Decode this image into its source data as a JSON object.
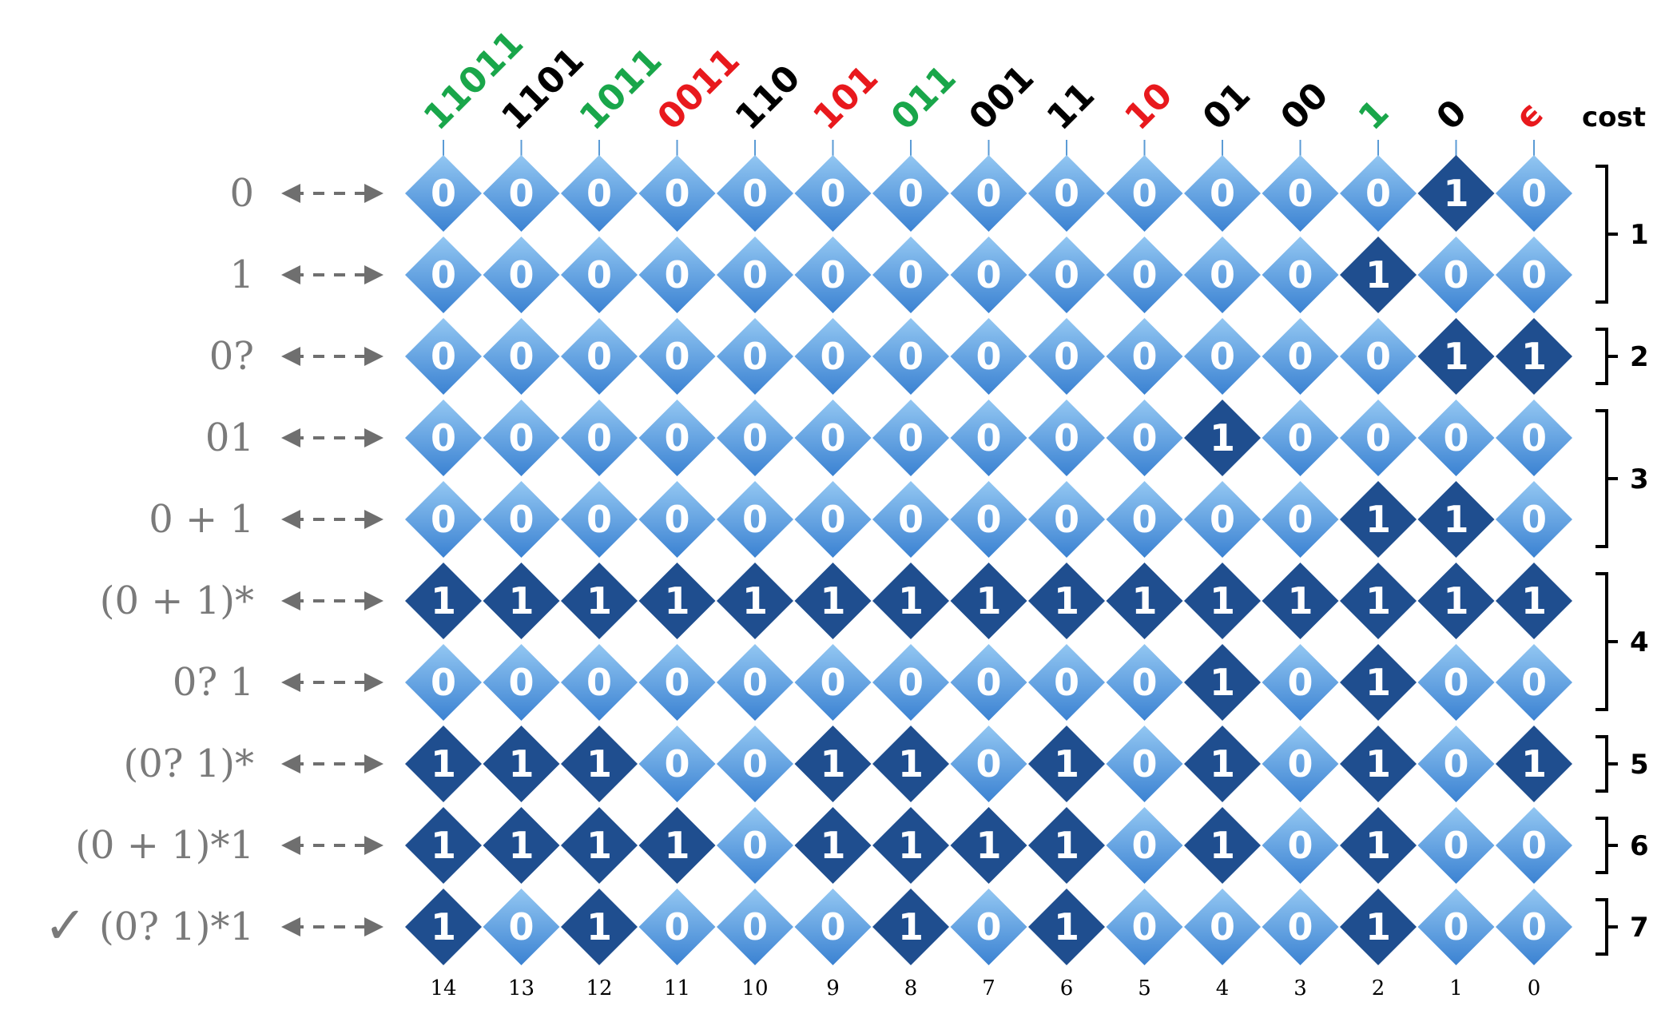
{
  "columns": [
    {
      "label": "11011",
      "color": "#19a64a",
      "index": "14"
    },
    {
      "label": "1101",
      "color": "#000000",
      "index": "13"
    },
    {
      "label": "1011",
      "color": "#19a64a",
      "index": "12"
    },
    {
      "label": "0011",
      "color": "#e8191d",
      "index": "11"
    },
    {
      "label": "110",
      "color": "#000000",
      "index": "10"
    },
    {
      "label": "101",
      "color": "#e8191d",
      "index": "9"
    },
    {
      "label": "011",
      "color": "#19a64a",
      "index": "8"
    },
    {
      "label": "001",
      "color": "#000000",
      "index": "7"
    },
    {
      "label": "11",
      "color": "#000000",
      "index": "6"
    },
    {
      "label": "10",
      "color": "#e8191d",
      "index": "5"
    },
    {
      "label": "01",
      "color": "#000000",
      "index": "4"
    },
    {
      "label": "00",
      "color": "#000000",
      "index": "3"
    },
    {
      "label": "1",
      "color": "#19a64a",
      "index": "2"
    },
    {
      "label": "0",
      "color": "#000000",
      "index": "1"
    },
    {
      "label": "ϵ",
      "color": "#e8191d",
      "index": "0"
    }
  ],
  "cost_title": "cost",
  "rows": [
    {
      "regex": "0",
      "checked": false,
      "values": [
        0,
        0,
        0,
        0,
        0,
        0,
        0,
        0,
        0,
        0,
        0,
        0,
        0,
        1,
        0
      ]
    },
    {
      "regex": "1",
      "checked": false,
      "values": [
        0,
        0,
        0,
        0,
        0,
        0,
        0,
        0,
        0,
        0,
        0,
        0,
        1,
        0,
        0
      ]
    },
    {
      "regex": "0?",
      "checked": false,
      "values": [
        0,
        0,
        0,
        0,
        0,
        0,
        0,
        0,
        0,
        0,
        0,
        0,
        0,
        1,
        1
      ]
    },
    {
      "regex": "01",
      "checked": false,
      "values": [
        0,
        0,
        0,
        0,
        0,
        0,
        0,
        0,
        0,
        0,
        1,
        0,
        0,
        0,
        0
      ]
    },
    {
      "regex": "0 + 1",
      "checked": false,
      "values": [
        0,
        0,
        0,
        0,
        0,
        0,
        0,
        0,
        0,
        0,
        0,
        0,
        1,
        1,
        0
      ]
    },
    {
      "regex": "(0 + 1)*",
      "checked": false,
      "values": [
        1,
        1,
        1,
        1,
        1,
        1,
        1,
        1,
        1,
        1,
        1,
        1,
        1,
        1,
        1
      ]
    },
    {
      "regex": "0? 1",
      "checked": false,
      "values": [
        0,
        0,
        0,
        0,
        0,
        0,
        0,
        0,
        0,
        0,
        1,
        0,
        1,
        0,
        0
      ]
    },
    {
      "regex": "(0? 1)*",
      "checked": false,
      "values": [
        1,
        1,
        1,
        0,
        0,
        1,
        1,
        0,
        1,
        0,
        1,
        0,
        1,
        0,
        1
      ]
    },
    {
      "regex": "(0 + 1)*1",
      "checked": false,
      "values": [
        1,
        1,
        1,
        1,
        0,
        1,
        1,
        1,
        1,
        0,
        1,
        0,
        1,
        0,
        0
      ]
    },
    {
      "regex": "(0? 1)*1",
      "checked": true,
      "values": [
        1,
        0,
        1,
        0,
        0,
        0,
        1,
        0,
        1,
        0,
        0,
        0,
        1,
        0,
        0
      ]
    }
  ],
  "cost_groups": [
    {
      "label": "1",
      "first_row": 0,
      "last_row": 1
    },
    {
      "label": "2",
      "first_row": 2,
      "last_row": 2
    },
    {
      "label": "3",
      "first_row": 3,
      "last_row": 4
    },
    {
      "label": "4",
      "first_row": 5,
      "last_row": 6
    },
    {
      "label": "5",
      "first_row": 7,
      "last_row": 7
    },
    {
      "label": "6",
      "first_row": 8,
      "last_row": 8
    },
    {
      "label": "7",
      "first_row": 9,
      "last_row": 9
    }
  ],
  "checkmark": "✓",
  "colors": {
    "zero_light": "#8ec3f0",
    "zero_dark": "#3f86d4",
    "one": "#1f4e8f",
    "arrow": "#6f6f6f",
    "regex_text": "#7a7a7a"
  }
}
